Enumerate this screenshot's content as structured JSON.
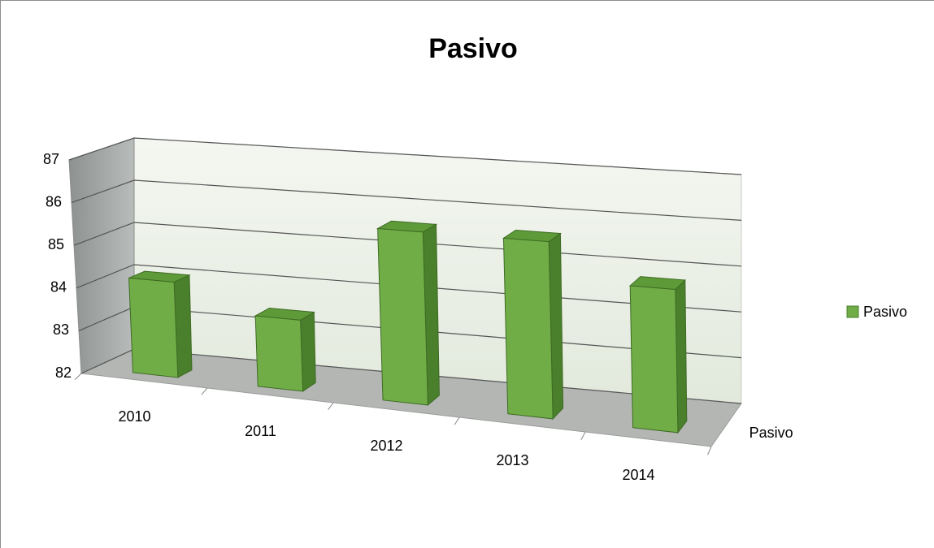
{
  "chart_data": {
    "type": "bar3d",
    "title": "Pasivo",
    "categories": [
      "2010",
      "2011",
      "2012",
      "2013",
      "2014"
    ],
    "series": [
      {
        "name": "Pasivo",
        "color": "#70ad47",
        "values": [
          84.2,
          83.6,
          85.8,
          85.8,
          85.0
        ]
      }
    ],
    "ylim": [
      82,
      87
    ],
    "yticks": [
      82,
      83,
      84,
      85,
      86,
      87
    ],
    "grid": true,
    "legend": "right"
  }
}
